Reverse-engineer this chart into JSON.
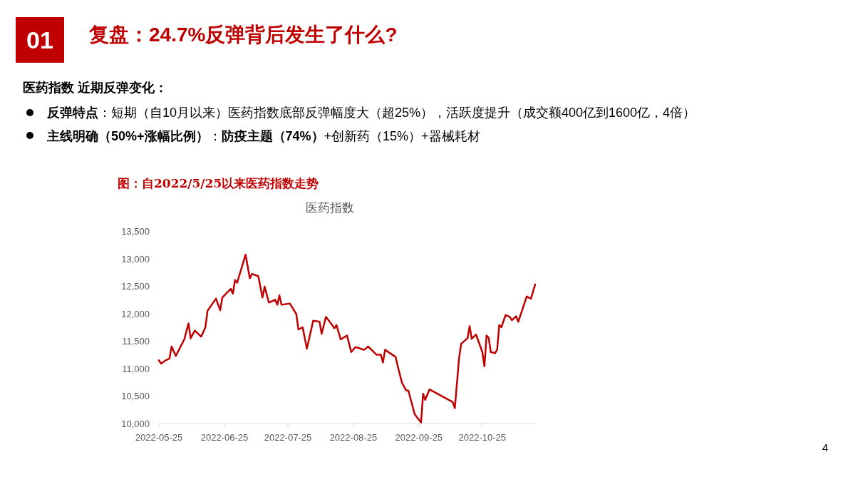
{
  "chart_data": {
    "type": "line",
    "title": "复盘：24.7%反弹背后发生了什么?",
    "subtitle": "图：自2022/5/25以来医药指数走势",
    "annotations": [
      "01",
      "医药指数 近期反弹变化：",
      "**反弹特点**：短期（自10月以来）医药指数底部反弹幅度大（超25%），活跃度提升（成交额400亿到1600亿，4倍）",
      "**主线明确（50%+涨幅比例）**：**防疫主题（74%）**+创新药（15%）+器械耗材",
      "医药指数",
      "4"
    ],
    "x": [
      "2022-05-25",
      "2022-05-26",
      "2022-05-28",
      "2022-05-30",
      "2022-05-31",
      "2022-06-02",
      "2022-06-06",
      "2022-06-08",
      "2022-06-09",
      "2022-06-11",
      "2022-06-14",
      "2022-06-16",
      "2022-06-17",
      "2022-06-21",
      "2022-06-23",
      "2022-06-24",
      "2022-06-28",
      "2022-06-29",
      "2022-06-30",
      "2022-07-01",
      "2022-07-05",
      "2022-07-07",
      "2022-07-08",
      "2022-07-11",
      "2022-07-13",
      "2022-07-14",
      "2022-07-16",
      "2022-07-19",
      "2022-07-20",
      "2022-07-21",
      "2022-07-22",
      "2022-07-26",
      "2022-07-29",
      "2022-07-30",
      "2022-08-01",
      "2022-08-03",
      "2022-08-06",
      "2022-08-09",
      "2022-08-10",
      "2022-08-12",
      "2022-08-15",
      "2022-08-16",
      "2022-08-17",
      "2022-08-19",
      "2022-08-22",
      "2022-08-24",
      "2022-08-26",
      "2022-08-30",
      "2022-09-01",
      "2022-09-05",
      "2022-09-07",
      "2022-09-08",
      "2022-09-09",
      "2022-09-14",
      "2022-09-15",
      "2022-09-17",
      "2022-09-19",
      "2022-09-20",
      "2022-09-23",
      "2022-09-26",
      "2022-09-27",
      "2022-09-28",
      "2022-09-30",
      "2022-10-11",
      "2022-10-12",
      "2022-10-14",
      "2022-10-15",
      "2022-10-18",
      "2022-10-19",
      "2022-10-20",
      "2022-10-22",
      "2022-10-25",
      "2022-10-26",
      "2022-10-27",
      "2022-10-28",
      "2022-10-29",
      "2022-10-31",
      "2022-11-01",
      "2022-11-02",
      "2022-11-03",
      "2022-11-05",
      "2022-11-07",
      "2022-11-08",
      "2022-11-10",
      "2022-11-11",
      "2022-11-15",
      "2022-11-17",
      "2022-11-19"
    ],
    "series": [
      {
        "color": "#c00000",
        "values": [
          11150,
          11090,
          11145,
          11180,
          11400,
          11230,
          11530,
          11820,
          11550,
          11690,
          11580,
          11750,
          12050,
          12270,
          12060,
          12290,
          12450,
          12360,
          12610,
          12560,
          13070,
          12640,
          12720,
          12680,
          12290,
          12490,
          12200,
          12250,
          12160,
          12330,
          12160,
          12180,
          11990,
          11710,
          11750,
          11360,
          11870,
          11850,
          11630,
          11940,
          11790,
          11730,
          11790,
          11530,
          11600,
          11300,
          11390,
          11340,
          11400,
          11250,
          11250,
          11110,
          11340,
          11210,
          11040,
          10740,
          10600,
          10600,
          10170,
          10020,
          10540,
          10430,
          10620,
          10390,
          10280,
          11190,
          11450,
          11550,
          11770,
          11540,
          11620,
          11300,
          11040,
          11600,
          11560,
          11300,
          11280,
          11340,
          11790,
          11750,
          11970,
          11940,
          11880,
          11950,
          11850,
          12310,
          12270,
          12530
        ]
      }
    ],
    "xlim": [
      "2022-05-25",
      "2022-11-19"
    ],
    "xticks": [
      "2022-05-25",
      "2022-06-25",
      "2022-07-25",
      "2022-08-25",
      "2022-09-25",
      "2022-10-25"
    ],
    "ylim": [
      10000,
      13500
    ],
    "yticks": [
      {
        "value": 10000,
        "label": "10,000"
      },
      {
        "value": 10500,
        "label": "10,500"
      },
      {
        "value": 11000,
        "label": "11,000"
      },
      {
        "value": 11500,
        "label": "11,500"
      },
      {
        "value": 12000,
        "label": "12,000"
      },
      {
        "value": 12500,
        "label": "12,500"
      },
      {
        "value": 13000,
        "label": "13,000"
      },
      {
        "value": 13500,
        "label": "13,500"
      }
    ]
  }
}
